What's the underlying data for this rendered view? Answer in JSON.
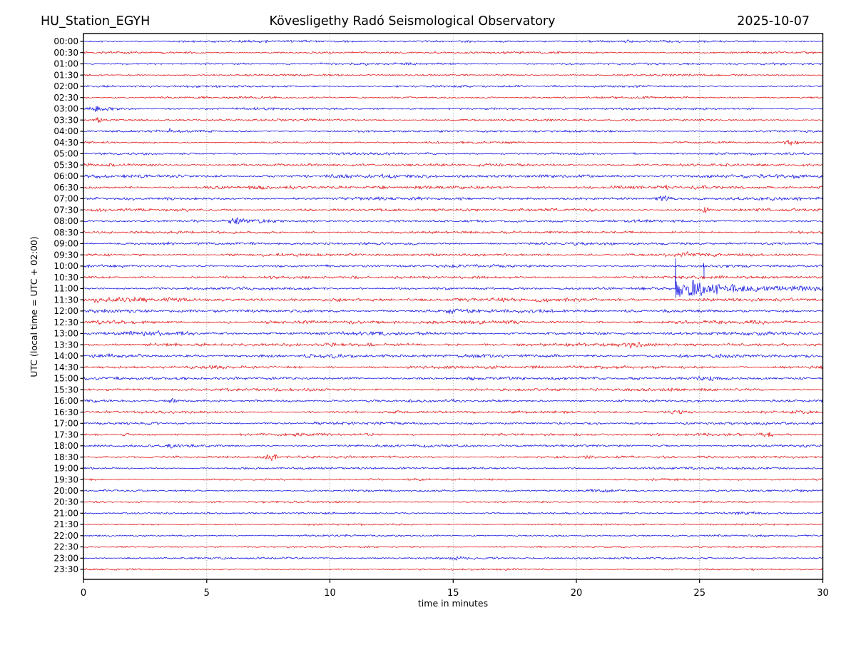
{
  "header": {
    "station": "HU_Station_EGYH",
    "title": "Kövesligethy Radó Seismological Observatory",
    "date": "2025-10-07"
  },
  "axes": {
    "xlabel": "time in minutes",
    "ylabel": "UTC (local time = UTC + 02:00)",
    "x_ticks": [
      0,
      5,
      10,
      15,
      20,
      25,
      30
    ],
    "grid_minutes": [
      5,
      10,
      15,
      20,
      25
    ],
    "xlim": [
      0,
      30
    ]
  },
  "chart_data": {
    "type": "line",
    "subtype": "helicorder-dayplot",
    "title": "Kövesligethy Radó Seismological Observatory",
    "station": "HU_Station_EGYH",
    "date": "2025-10-07",
    "xlabel": "time in minutes",
    "ylabel": "UTC (local time = UTC + 02:00)",
    "xlim": [
      0,
      30
    ],
    "x_ticks": [
      0,
      5,
      10,
      15,
      20,
      25,
      30
    ],
    "minutes_per_row": 30,
    "grid": true,
    "colors": {
      "blue": "#0000e0",
      "red": "#e00000"
    },
    "main_event": {
      "row": "11:00",
      "onset_minute": 24.0,
      "utc_time": "11:24",
      "description": "large seismic event: sharp onset spike crossing two rows above, high-amplitude coda decaying to end of row"
    },
    "rows": [
      {
        "label": "00:00",
        "color": "blue",
        "noise": 2.0,
        "events": []
      },
      {
        "label": "00:30",
        "color": "red",
        "noise": 1.9,
        "events": []
      },
      {
        "label": "01:00",
        "color": "blue",
        "noise": 1.9,
        "events": []
      },
      {
        "label": "01:30",
        "color": "red",
        "noise": 1.8,
        "events": []
      },
      {
        "label": "02:00",
        "color": "blue",
        "noise": 1.9,
        "events": []
      },
      {
        "label": "02:30",
        "color": "red",
        "noise": 1.8,
        "events": []
      },
      {
        "label": "03:00",
        "color": "blue",
        "noise": 2.0,
        "events": [
          {
            "t": 0.5,
            "sigma": 0.2,
            "amp": 2.4
          },
          {
            "t": 1.0,
            "sigma": 0.5,
            "amp": 2.0
          }
        ]
      },
      {
        "label": "03:30",
        "color": "red",
        "noise": 1.9,
        "events": [
          {
            "t": 0.6,
            "sigma": 0.12,
            "amp": 2.6
          }
        ]
      },
      {
        "label": "04:00",
        "color": "blue",
        "noise": 1.9,
        "events": [
          {
            "t": 3.5,
            "sigma": 0.15,
            "amp": 3.2
          }
        ]
      },
      {
        "label": "04:30",
        "color": "red",
        "noise": 1.8,
        "events": [
          {
            "t": 28.7,
            "sigma": 0.2,
            "amp": 3.4
          }
        ]
      },
      {
        "label": "05:00",
        "color": "blue",
        "noise": 2.0,
        "events": []
      },
      {
        "label": "05:30",
        "color": "red",
        "noise": 2.4,
        "events": []
      },
      {
        "label": "06:00",
        "color": "blue",
        "noise": 3.0,
        "events": []
      },
      {
        "label": "06:30",
        "color": "red",
        "noise": 3.0,
        "events": []
      },
      {
        "label": "07:00",
        "color": "blue",
        "noise": 2.6,
        "events": [
          {
            "t": 23.6,
            "sigma": 0.3,
            "amp": 2.0
          }
        ]
      },
      {
        "label": "07:30",
        "color": "red",
        "noise": 2.4,
        "events": [
          {
            "t": 25.2,
            "sigma": 0.15,
            "amp": 2.6
          }
        ]
      },
      {
        "label": "08:00",
        "color": "blue",
        "noise": 2.3,
        "events": [
          {
            "t": 6.3,
            "sigma": 0.35,
            "amp": 3.2
          },
          {
            "t": 7.0,
            "sigma": 0.2,
            "amp": 2.6
          }
        ]
      },
      {
        "label": "08:30",
        "color": "red",
        "noise": 2.3,
        "events": []
      },
      {
        "label": "09:00",
        "color": "blue",
        "noise": 2.4,
        "events": []
      },
      {
        "label": "09:30",
        "color": "red",
        "noise": 2.5,
        "events": [
          {
            "t": 24.3,
            "sigma": 0.5,
            "amp": 1.8
          }
        ]
      },
      {
        "label": "10:00",
        "color": "blue",
        "noise": 2.4,
        "events": [
          {
            "type": "spike",
            "t": 25.17,
            "up": 4,
            "down": 16
          }
        ]
      },
      {
        "label": "10:30",
        "color": "red",
        "noise": 2.5,
        "events": []
      },
      {
        "label": "11:00",
        "color": "blue",
        "noise": 2.4,
        "events": [
          {
            "type": "quake",
            "t": 24.0,
            "amp": 8,
            "tau": 9,
            "spike_up": 42,
            "spike_down": 13
          }
        ]
      },
      {
        "label": "11:30",
        "color": "red",
        "noise": 3.2,
        "events": [
          {
            "t": 1.0,
            "sigma": 1.5,
            "amp": 1.5
          }
        ]
      },
      {
        "label": "12:00",
        "color": "blue",
        "noise": 2.9,
        "events": [
          {
            "t": 15.1,
            "sigma": 0.3,
            "amp": 2.4
          }
        ]
      },
      {
        "label": "12:30",
        "color": "red",
        "noise": 3.0,
        "events": []
      },
      {
        "label": "13:00",
        "color": "blue",
        "noise": 2.9,
        "events": [
          {
            "t": 2.5,
            "sigma": 1.2,
            "amp": 1.8
          }
        ]
      },
      {
        "label": "13:30",
        "color": "red",
        "noise": 2.8,
        "events": [
          {
            "t": 22.4,
            "sigma": 0.3,
            "amp": 3.6
          }
        ]
      },
      {
        "label": "14:00",
        "color": "blue",
        "noise": 3.0,
        "events": [
          {
            "t": 10.0,
            "sigma": 0.8,
            "amp": 1.6
          }
        ]
      },
      {
        "label": "14:30",
        "color": "red",
        "noise": 2.7,
        "events": []
      },
      {
        "label": "15:00",
        "color": "blue",
        "noise": 2.7,
        "events": [
          {
            "t": 25.3,
            "sigma": 0.6,
            "amp": 1.6
          }
        ]
      },
      {
        "label": "15:30",
        "color": "red",
        "noise": 2.4,
        "events": []
      },
      {
        "label": "16:00",
        "color": "blue",
        "noise": 2.3,
        "events": [
          {
            "t": 3.6,
            "sigma": 0.15,
            "amp": 2.4
          }
        ]
      },
      {
        "label": "16:30",
        "color": "red",
        "noise": 2.3,
        "events": [
          {
            "t": 24.0,
            "sigma": 0.5,
            "amp": 1.6
          }
        ]
      },
      {
        "label": "17:00",
        "color": "blue",
        "noise": 2.3,
        "events": []
      },
      {
        "label": "17:30",
        "color": "red",
        "noise": 2.2,
        "events": [
          {
            "t": 27.7,
            "sigma": 0.2,
            "amp": 3.2
          }
        ]
      },
      {
        "label": "18:00",
        "color": "blue",
        "noise": 2.2,
        "events": [
          {
            "t": 3.7,
            "sigma": 0.25,
            "amp": 2.0
          }
        ]
      },
      {
        "label": "18:30",
        "color": "red",
        "noise": 2.2,
        "events": [
          {
            "t": 7.6,
            "sigma": 0.18,
            "amp": 4.0
          }
        ]
      },
      {
        "label": "19:00",
        "color": "blue",
        "noise": 2.0,
        "events": []
      },
      {
        "label": "19:30",
        "color": "red",
        "noise": 1.8,
        "events": []
      },
      {
        "label": "20:00",
        "color": "blue",
        "noise": 1.8,
        "events": [
          {
            "t": 21.0,
            "sigma": 0.8,
            "amp": 1.3
          }
        ]
      },
      {
        "label": "20:30",
        "color": "red",
        "noise": 1.7,
        "events": []
      },
      {
        "label": "21:00",
        "color": "blue",
        "noise": 1.7,
        "events": [
          {
            "t": 27.0,
            "sigma": 0.8,
            "amp": 1.3
          }
        ]
      },
      {
        "label": "21:30",
        "color": "red",
        "noise": 1.6,
        "events": []
      },
      {
        "label": "22:00",
        "color": "blue",
        "noise": 1.6,
        "events": []
      },
      {
        "label": "22:30",
        "color": "red",
        "noise": 1.6,
        "events": []
      },
      {
        "label": "23:00",
        "color": "blue",
        "noise": 1.7,
        "events": [
          {
            "t": 15.0,
            "sigma": 0.8,
            "amp": 1.3
          }
        ]
      },
      {
        "label": "23:30",
        "color": "red",
        "noise": 1.6,
        "events": []
      }
    ]
  }
}
